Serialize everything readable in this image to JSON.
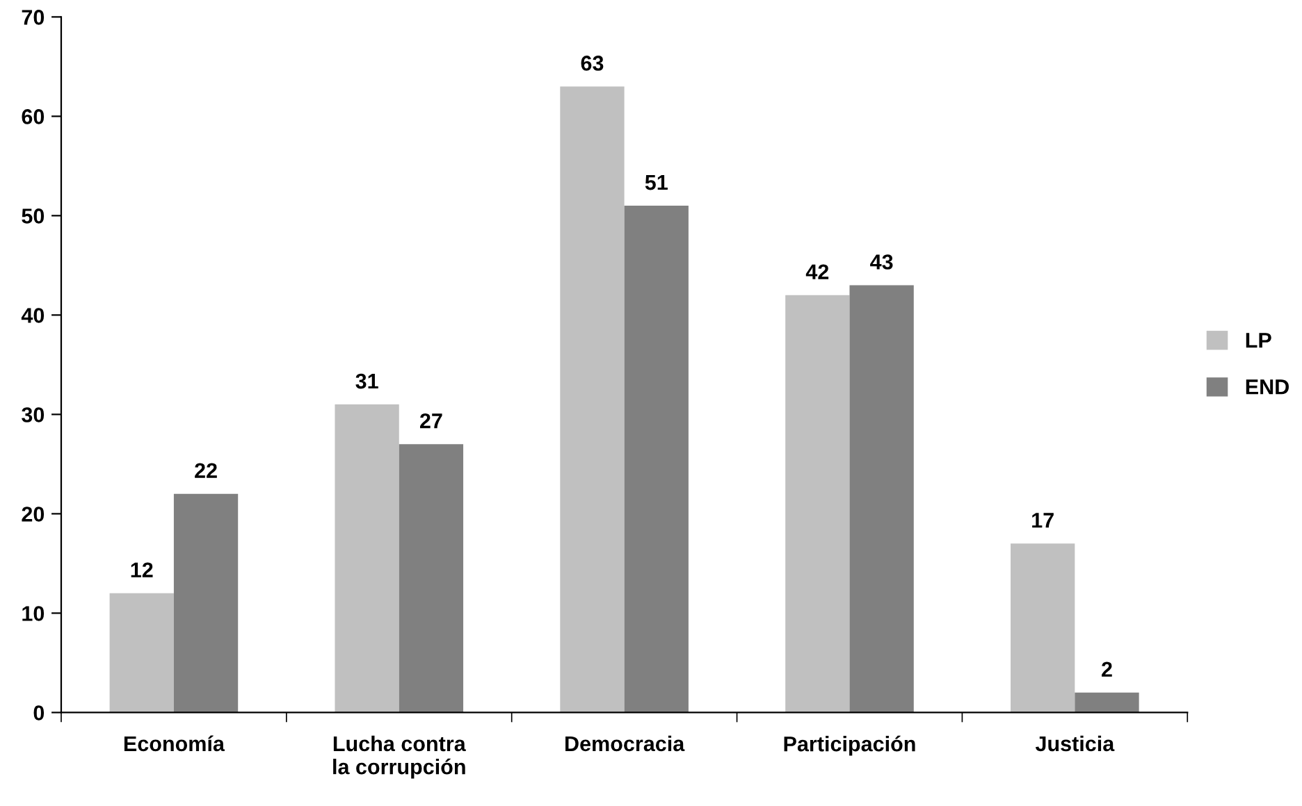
{
  "chart_data": {
    "type": "bar",
    "categories": [
      "Economía",
      "Lucha contra\nla corrupción",
      "Democracia",
      "Participación",
      "Justicia"
    ],
    "series": [
      {
        "name": "LP",
        "color": "#c0c0c0",
        "values": [
          12,
          31,
          63,
          42,
          17
        ]
      },
      {
        "name": "END",
        "color": "#808080",
        "values": [
          22,
          27,
          51,
          43,
          2
        ]
      }
    ],
    "ylim": [
      0,
      70
    ],
    "yticks": [
      0,
      10,
      20,
      30,
      40,
      50,
      60,
      70
    ],
    "data_labels": true,
    "grid": false,
    "legend": "right"
  }
}
